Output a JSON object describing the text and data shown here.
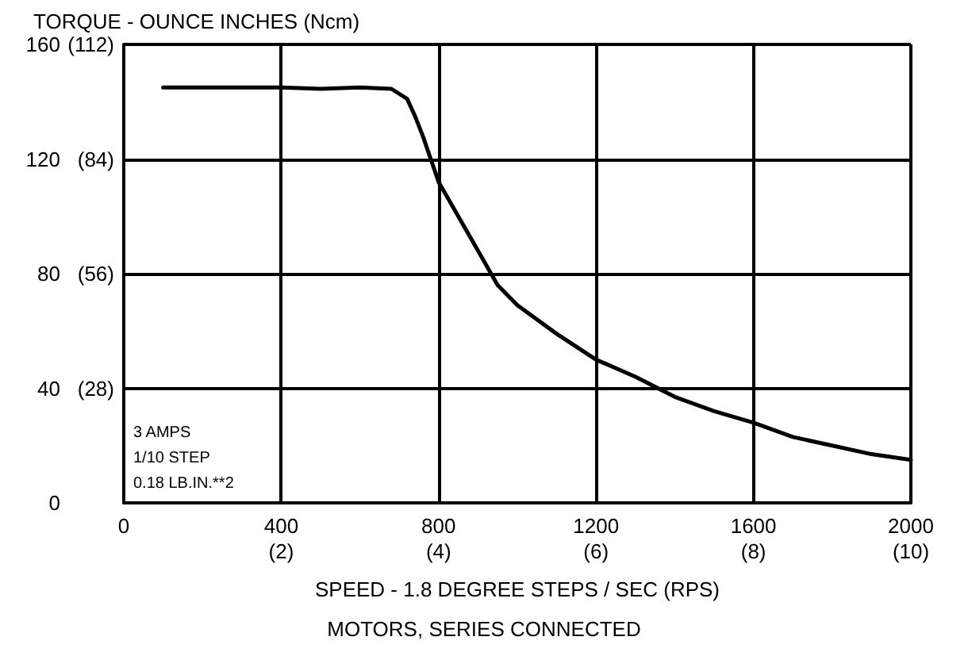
{
  "chart_data": {
    "type": "line",
    "xlabel": "SPEED - 1.8 DEGREE STEPS / SEC (RPS)",
    "title": "TORQUE - OUNCE INCHES (Ncm)",
    "annotations": [
      "3 AMPS",
      "1/10 STEP",
      "0.18 LB.IN.**2",
      "MOTORS, SERIES CONNECTED"
    ],
    "x": [
      100,
      400,
      500,
      600,
      680,
      720,
      740,
      760,
      780,
      800,
      850,
      900,
      950,
      1000,
      1100,
      1200,
      1300,
      1400,
      1500,
      1600,
      1700,
      1800,
      1900,
      2000
    ],
    "series": [
      {
        "color": "#000000",
        "values": [
          145,
          145,
          144.5,
          145,
          144.5,
          141,
          135,
          128,
          120,
          112,
          100,
          88,
          76,
          69,
          59,
          50,
          44,
          37,
          32,
          28,
          23,
          20,
          17,
          15
        ]
      }
    ],
    "xlim": [
      0,
      2000
    ],
    "ylim": [
      0,
      160
    ],
    "xticks": [
      0,
      400,
      800,
      1200,
      1600,
      2000
    ],
    "yticks": [
      0,
      40,
      80,
      120,
      160
    ],
    "x2lim": [
      0,
      10
    ],
    "x2ticks": [
      {
        "value": 2,
        "label": "(2)"
      },
      {
        "value": 4,
        "label": "(4)"
      },
      {
        "value": 6,
        "label": "(6)"
      },
      {
        "value": 8,
        "label": "(8)"
      },
      {
        "value": 10,
        "label": "(10)"
      }
    ],
    "y2lim": [
      0,
      112
    ],
    "y2ticks": [
      {
        "value": 28,
        "label": "(28)"
      },
      {
        "value": 56,
        "label": "(56)"
      },
      {
        "value": 84,
        "label": "(84)"
      },
      {
        "value": 112,
        "label": "(112)"
      }
    ],
    "grid": true,
    "marker": "none",
    "line_style": "solid"
  }
}
